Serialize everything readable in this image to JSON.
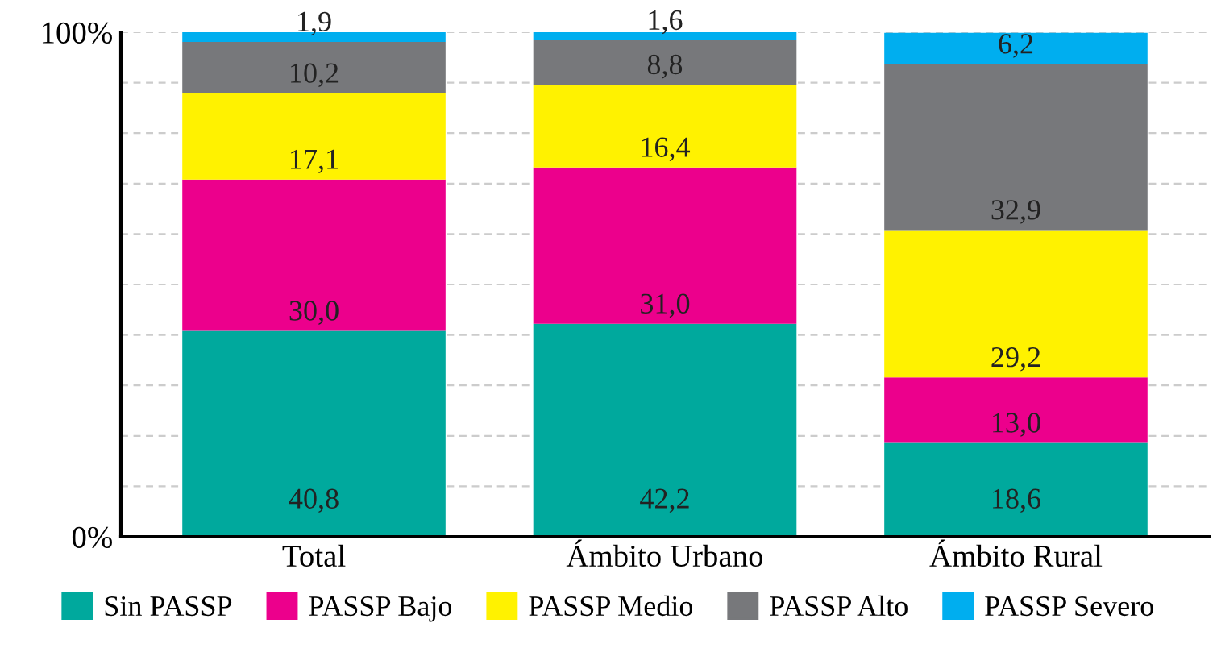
{
  "chart_data": {
    "type": "bar",
    "stacked": true,
    "categories": [
      "Total",
      "Ámbito Urbano",
      "Ámbito Rural"
    ],
    "series": [
      {
        "name": "Sin PASSP",
        "color": "#00a99d",
        "values": [
          40.8,
          42.2,
          18.6
        ],
        "value_labels": [
          "40,8",
          "42,2",
          "18,6"
        ]
      },
      {
        "name": "PASSP Bajo",
        "color": "#ec008c",
        "values": [
          30.0,
          31.0,
          13.0
        ],
        "value_labels": [
          "30,0",
          "31,0",
          "13,0"
        ]
      },
      {
        "name": "PASSP Medio",
        "color": "#fff200",
        "values": [
          17.1,
          16.4,
          29.2
        ],
        "value_labels": [
          "17,1",
          "16,4",
          "29,2"
        ]
      },
      {
        "name": "PASSP Alto",
        "color": "#77787b",
        "values": [
          10.2,
          8.8,
          32.9
        ],
        "value_labels": [
          "10,2",
          "8,8",
          "32,9"
        ]
      },
      {
        "name": "PASSP Severo",
        "color": "#00aeef",
        "values": [
          1.9,
          1.6,
          6.2
        ],
        "value_labels": [
          "1,9",
          "1,6",
          "6,2"
        ]
      }
    ],
    "ylim": [
      0,
      100
    ],
    "yticks": [
      {
        "value": 0,
        "label": "0%"
      },
      {
        "value": 10,
        "label": null
      },
      {
        "value": 20,
        "label": null
      },
      {
        "value": 30,
        "label": null
      },
      {
        "value": 40,
        "label": null
      },
      {
        "value": 50,
        "label": null
      },
      {
        "value": 60,
        "label": null
      },
      {
        "value": 70,
        "label": null
      },
      {
        "value": 80,
        "label": null
      },
      {
        "value": 90,
        "label": null
      },
      {
        "value": 100,
        "label": "100%"
      }
    ],
    "grid": "y",
    "legend": "bottom"
  }
}
